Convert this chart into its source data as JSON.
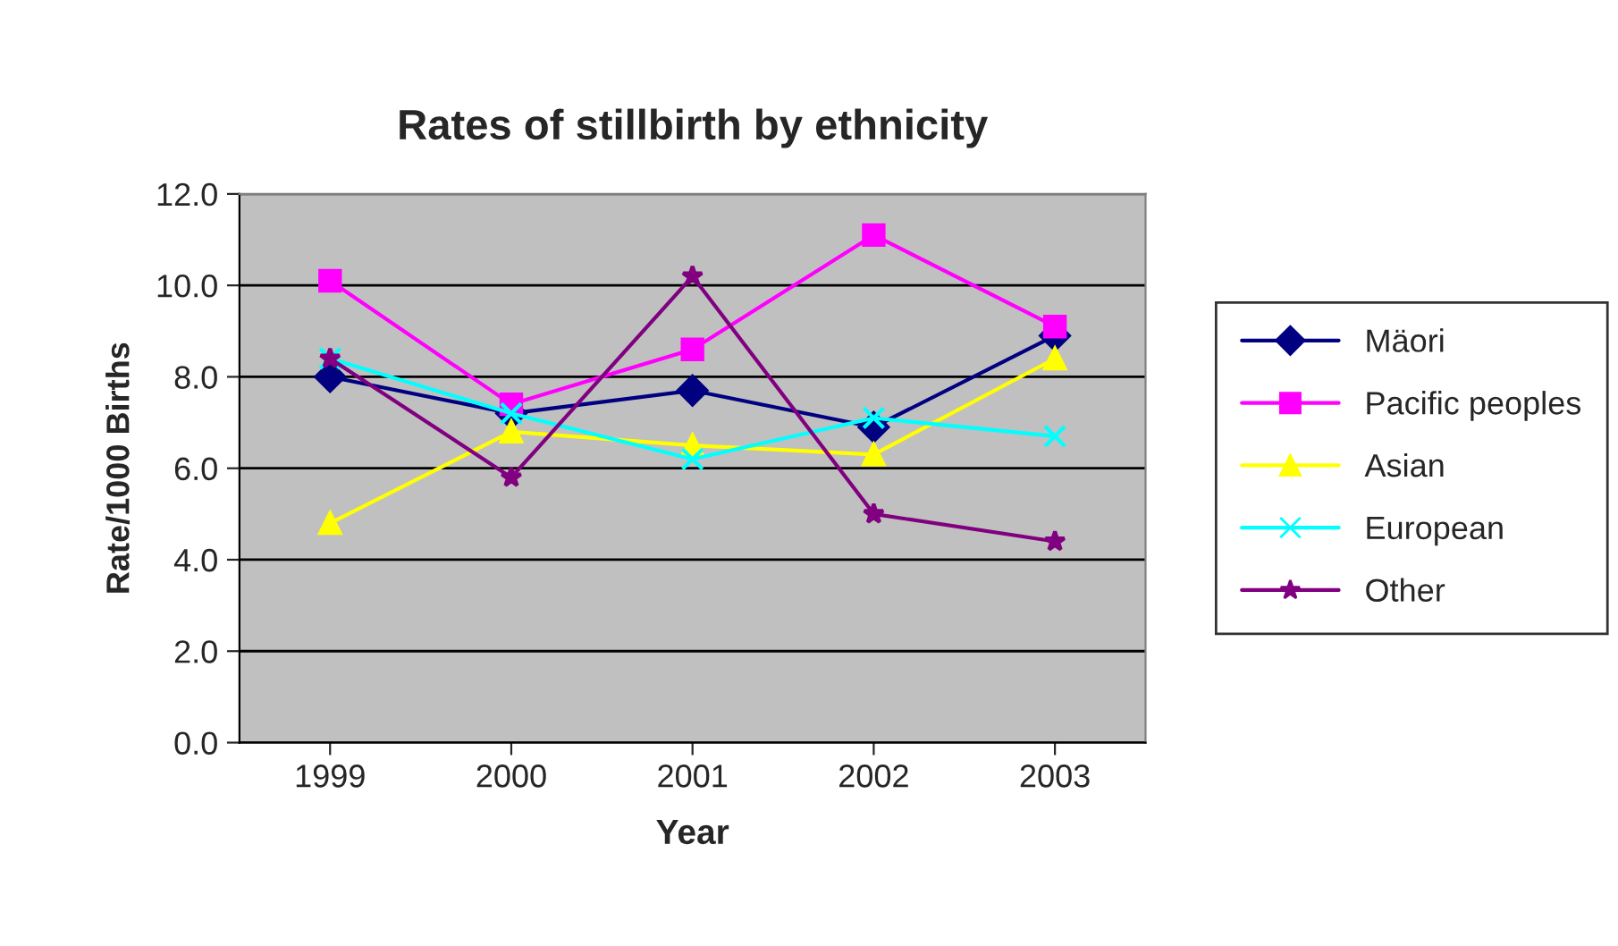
{
  "chart_data": {
    "type": "line",
    "title": "Rates of stillbirth by ethnicity",
    "xlabel": "Year",
    "ylabel": "Rate/1000 Births",
    "categories": [
      "1999",
      "2000",
      "2001",
      "2002",
      "2003"
    ],
    "series": [
      {
        "name": "Mäori",
        "color": "#000080",
        "marker": "diamond",
        "values": [
          8.0,
          7.2,
          7.7,
          6.9,
          8.9
        ]
      },
      {
        "name": "Pacific peoples",
        "color": "#ff00ff",
        "marker": "square",
        "values": [
          10.1,
          7.4,
          8.6,
          11.1,
          9.1
        ]
      },
      {
        "name": "Asian",
        "color": "#ffff00",
        "marker": "triangle",
        "values": [
          4.8,
          6.8,
          6.5,
          6.3,
          8.4
        ]
      },
      {
        "name": "European",
        "color": "#00ffff",
        "marker": "cross",
        "values": [
          8.4,
          7.2,
          6.2,
          7.1,
          6.7
        ]
      },
      {
        "name": "Other",
        "color": "#800080",
        "marker": "star",
        "values": [
          8.4,
          5.8,
          10.2,
          5.0,
          4.4
        ]
      }
    ],
    "ylim": [
      0,
      12
    ],
    "yticks": [
      {
        "value": 0,
        "label": "0.0"
      },
      {
        "value": 2,
        "label": "2.0"
      },
      {
        "value": 4,
        "label": "4.0"
      },
      {
        "value": 6,
        "label": "6.0"
      },
      {
        "value": 8,
        "label": "8.0"
      },
      {
        "value": 10,
        "label": "10.0"
      },
      {
        "value": 12,
        "label": "12.0"
      }
    ],
    "grid": "y",
    "legend": "right",
    "line_style": "solid"
  }
}
